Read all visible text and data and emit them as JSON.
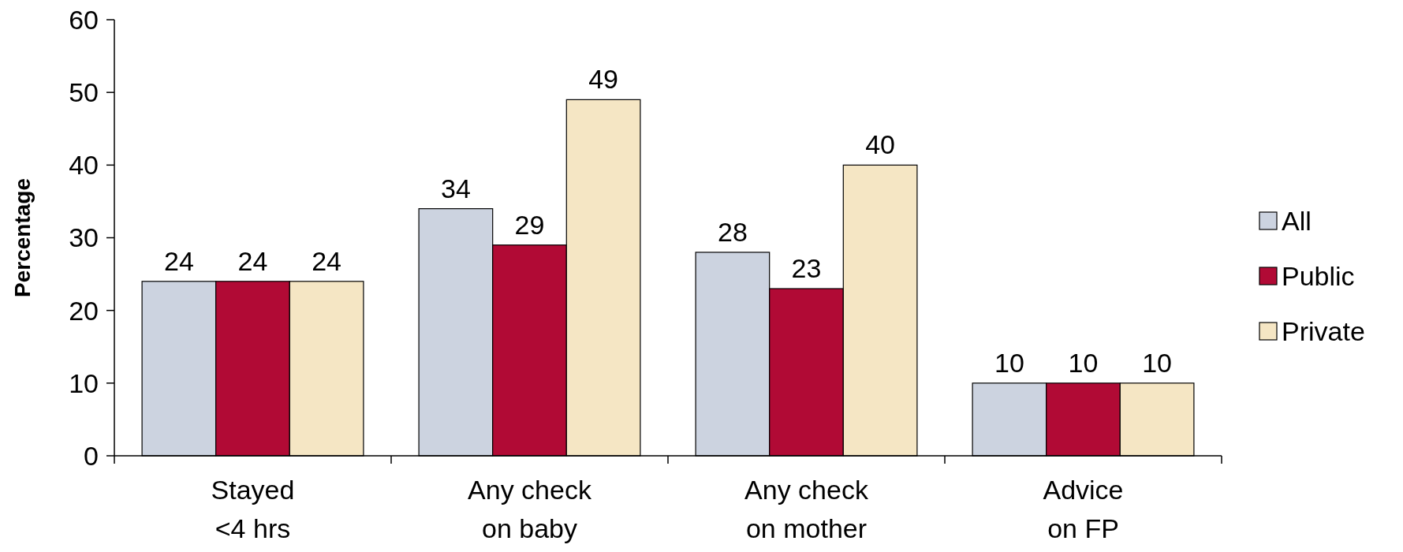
{
  "chart_data": {
    "type": "bar",
    "ylabel": "Percentage",
    "categories": [
      "Stayed\n<4 hrs",
      "Any check\non baby",
      "Any check\non mother",
      "Advice\non FP"
    ],
    "series": [
      {
        "name": "All",
        "color": "#ccd3e0",
        "values": [
          24,
          34,
          28,
          10
        ]
      },
      {
        "name": "Public",
        "color": "#b10a35",
        "values": [
          24,
          29,
          23,
          10
        ]
      },
      {
        "name": "Private",
        "color": "#f5e6c4",
        "values": [
          24,
          49,
          40,
          10
        ]
      }
    ],
    "ylim": [
      0,
      60
    ],
    "yticks": [
      0,
      10,
      20,
      30,
      40,
      50,
      60
    ],
    "data_labels": true,
    "legend": "right",
    "grid": false
  }
}
